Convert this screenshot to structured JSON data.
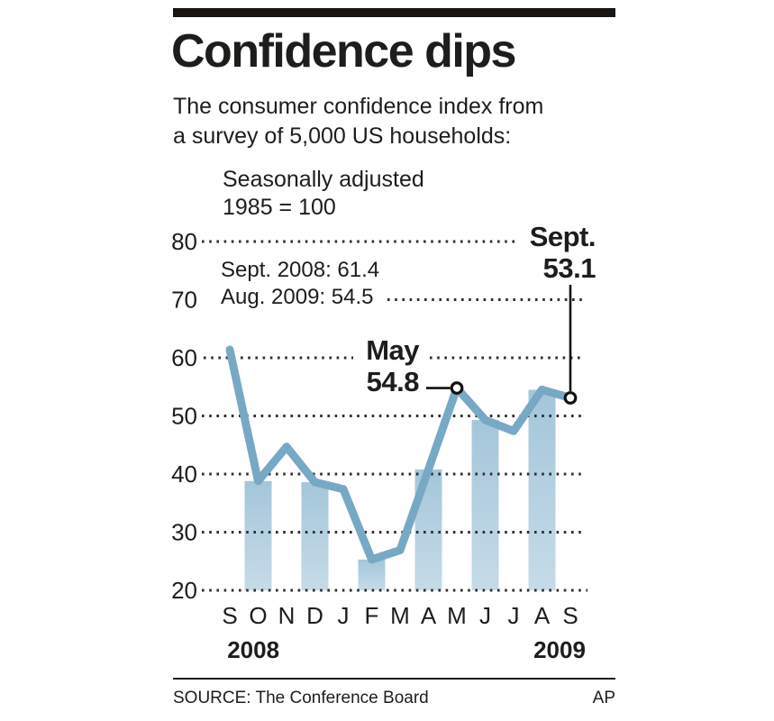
{
  "header": {
    "title": "Confidence dips",
    "subtitle_line1": "The consumer confidence index from",
    "subtitle_line2": "a survey of 5,000 US households:"
  },
  "notes": {
    "line1": "Seasonally adjusted",
    "line2": "1985 = 100"
  },
  "stats": [
    "Sept. 2008: 61.4",
    "Aug. 2009: 54.5"
  ],
  "annotations": {
    "may": {
      "label": "May",
      "value": "54.8"
    },
    "sept": {
      "label": "Sept.",
      "value": "53.1"
    }
  },
  "chart_data": {
    "type": "line",
    "x": [
      "S",
      "O",
      "N",
      "D",
      "J",
      "F",
      "M",
      "A",
      "M",
      "J",
      "J",
      "A",
      "S"
    ],
    "x_years": [
      {
        "label": "2008",
        "at_index": 0.83
      },
      {
        "label": "2009",
        "at_index": 11.62
      }
    ],
    "series": [
      {
        "name": "Consumer confidence index (1985 = 100, seasonally adjusted)",
        "values": [
          61.4,
          38.8,
          44.7,
          38.6,
          37.4,
          25.3,
          26.9,
          40.8,
          54.8,
          49.3,
          47.4,
          54.5,
          53.1
        ]
      }
    ],
    "highlight_bar_indices": [
      1,
      3,
      5,
      7,
      9,
      11
    ],
    "marked_point_indices": [
      8,
      12
    ],
    "yticks": [
      80,
      70,
      60,
      50,
      40,
      30,
      20
    ],
    "ylim": [
      20,
      85
    ],
    "grid": "dotted horizontal",
    "legend": "none",
    "colors": {
      "line": "#78a9c4",
      "bar_top": "#a4c6da",
      "bar_bottom": "#c6dbe8",
      "ink": "#1d1d1b",
      "grid_dots": "#2e2e2e",
      "marker_fill": "#ffffff",
      "marker_stroke": "#111111"
    }
  },
  "footer": {
    "source": "SOURCE: The Conference Board",
    "credit": "AP"
  }
}
